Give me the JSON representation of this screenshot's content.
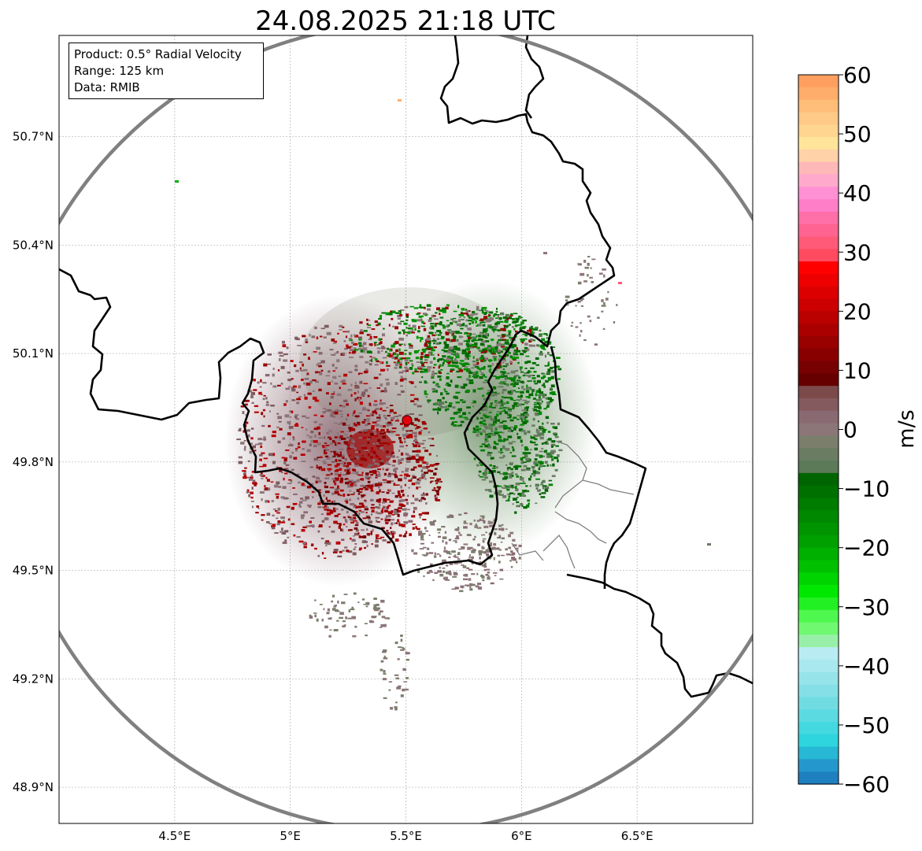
{
  "title": "24.08.2025 21:18 UTC",
  "info": {
    "product": "Product: 0.5° Radial Velocity",
    "range": "Range: 125 km",
    "data": "Data: RMIB"
  },
  "map": {
    "lon_range": [
      4.0,
      7.0
    ],
    "lat_range": [
      48.8,
      50.98
    ],
    "x_ticks": [
      {
        "value": 4.5,
        "label": "4.5°E"
      },
      {
        "value": 5.0,
        "label": "5°E"
      },
      {
        "value": 5.5,
        "label": "5.5°E"
      },
      {
        "value": 6.0,
        "label": "6°E"
      },
      {
        "value": 6.5,
        "label": "6.5°E"
      }
    ],
    "y_ticks": [
      {
        "value": 48.9,
        "label": "48.9°N"
      },
      {
        "value": 49.2,
        "label": "49.2°N"
      },
      {
        "value": 49.5,
        "label": "49.5°N"
      },
      {
        "value": 49.8,
        "label": "49.8°N"
      },
      {
        "value": 50.1,
        "label": "50.1°N"
      },
      {
        "value": 50.4,
        "label": "50.4°N"
      },
      {
        "value": 50.7,
        "label": "50.7°N"
      }
    ],
    "radar_site": {
      "lon": 5.505,
      "lat": 49.915,
      "color": "#e3000f"
    },
    "range_ring_color": "#808080",
    "grid": true
  },
  "colorbar": {
    "label": "m/s",
    "min": -60,
    "max": 60,
    "ticks": [
      "60",
      "50",
      "40",
      "30",
      "20",
      "10",
      "0",
      "−10",
      "−20",
      "−30",
      "−40",
      "−50",
      "−60"
    ],
    "colors_top_to_bottom": [
      "#ff9f5f",
      "#ffad6a",
      "#ffbd78",
      "#ffc987",
      "#ffd590",
      "#ffe49a",
      "#ffd2a8",
      "#ffb8b8",
      "#ffaacc",
      "#ff90d4",
      "#ff7ec8",
      "#ff6fa8",
      "#ff6490",
      "#ff5a78",
      "#ff4a60",
      "#ff0000",
      "#ee0000",
      "#dd0000",
      "#cc0000",
      "#bb0000",
      "#aa0000",
      "#990000",
      "#880000",
      "#770000",
      "#660000",
      "#7d4a4a",
      "#845a5e",
      "#8a6a72",
      "#8c7678",
      "#7c7e6c",
      "#6a7d62",
      "#5c7a58",
      "#006400",
      "#007000",
      "#007c00",
      "#008800",
      "#009400",
      "#00a000",
      "#00b000",
      "#00c000",
      "#00d400",
      "#00e800",
      "#22f022",
      "#4ef84e",
      "#70f870",
      "#98f0a8",
      "#b8ecf2",
      "#a8e8ee",
      "#96e4ea",
      "#84e0e6",
      "#70dce2",
      "#5cdae2",
      "#44d8e0",
      "#2ed4de",
      "#26b8d4",
      "#2498cc",
      "#1f80c0"
    ]
  }
}
